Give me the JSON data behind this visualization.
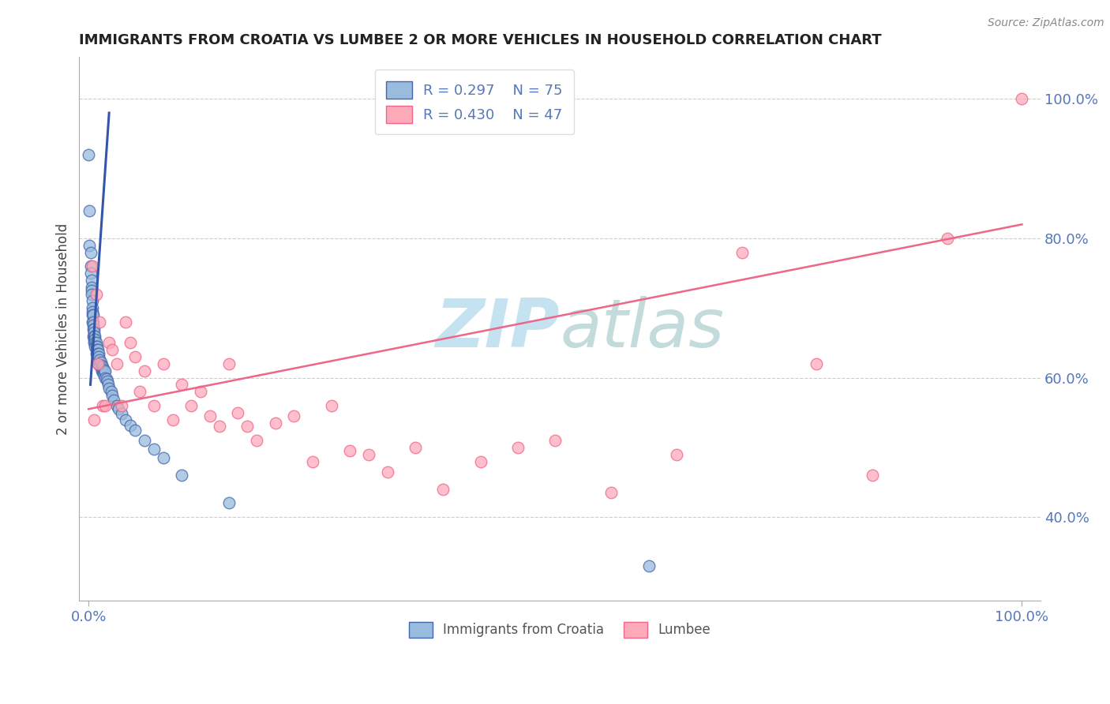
{
  "title": "IMMIGRANTS FROM CROATIA VS LUMBEE 2 OR MORE VEHICLES IN HOUSEHOLD CORRELATION CHART",
  "source_text": "Source: ZipAtlas.com",
  "ylabel": "2 or more Vehicles in Household",
  "legend_labels": [
    "Immigrants from Croatia",
    "Lumbee"
  ],
  "blue_r": "0.297",
  "blue_n": "75",
  "pink_r": "0.430",
  "pink_n": "47",
  "blue_color": "#99BBDD",
  "pink_color": "#FFAABB",
  "blue_edge_color": "#4466AA",
  "pink_edge_color": "#EE6688",
  "blue_line_color": "#3355AA",
  "pink_line_color": "#EE6688",
  "title_color": "#222222",
  "tick_label_color": "#5577BB",
  "watermark_color": "#BBDDEE",
  "background_color": "#FFFFFF",
  "grid_color": "#CCCCCC",
  "blue_scatter_x": [
    0.0,
    0.001,
    0.001,
    0.002,
    0.002,
    0.002,
    0.003,
    0.003,
    0.003,
    0.003,
    0.004,
    0.004,
    0.004,
    0.004,
    0.004,
    0.005,
    0.005,
    0.005,
    0.005,
    0.005,
    0.006,
    0.006,
    0.006,
    0.006,
    0.006,
    0.007,
    0.007,
    0.007,
    0.007,
    0.008,
    0.008,
    0.008,
    0.008,
    0.009,
    0.009,
    0.009,
    0.01,
    0.01,
    0.01,
    0.01,
    0.011,
    0.011,
    0.011,
    0.012,
    0.012,
    0.013,
    0.013,
    0.014,
    0.014,
    0.015,
    0.015,
    0.016,
    0.016,
    0.017,
    0.018,
    0.018,
    0.019,
    0.02,
    0.021,
    0.022,
    0.024,
    0.025,
    0.027,
    0.03,
    0.032,
    0.035,
    0.04,
    0.045,
    0.05,
    0.06,
    0.07,
    0.08,
    0.1,
    0.15,
    0.6
  ],
  "blue_scatter_y": [
    0.92,
    0.84,
    0.79,
    0.78,
    0.76,
    0.75,
    0.74,
    0.73,
    0.725,
    0.72,
    0.71,
    0.7,
    0.695,
    0.69,
    0.68,
    0.69,
    0.68,
    0.675,
    0.67,
    0.66,
    0.67,
    0.665,
    0.66,
    0.655,
    0.65,
    0.66,
    0.655,
    0.65,
    0.645,
    0.65,
    0.645,
    0.64,
    0.635,
    0.645,
    0.64,
    0.635,
    0.64,
    0.635,
    0.63,
    0.625,
    0.635,
    0.63,
    0.62,
    0.625,
    0.618,
    0.622,
    0.615,
    0.618,
    0.61,
    0.615,
    0.608,
    0.612,
    0.605,
    0.608,
    0.61,
    0.6,
    0.598,
    0.595,
    0.59,
    0.585,
    0.58,
    0.575,
    0.568,
    0.56,
    0.555,
    0.548,
    0.54,
    0.532,
    0.525,
    0.51,
    0.498,
    0.485,
    0.46,
    0.42,
    0.33
  ],
  "pink_scatter_x": [
    0.004,
    0.006,
    0.008,
    0.01,
    0.012,
    0.015,
    0.018,
    0.022,
    0.025,
    0.03,
    0.035,
    0.04,
    0.045,
    0.05,
    0.055,
    0.06,
    0.07,
    0.08,
    0.09,
    0.1,
    0.11,
    0.12,
    0.13,
    0.14,
    0.15,
    0.16,
    0.17,
    0.18,
    0.2,
    0.22,
    0.24,
    0.26,
    0.28,
    0.3,
    0.32,
    0.35,
    0.38,
    0.42,
    0.46,
    0.5,
    0.56,
    0.63,
    0.7,
    0.78,
    0.84,
    0.92,
    1.0
  ],
  "pink_scatter_y": [
    0.76,
    0.54,
    0.72,
    0.62,
    0.68,
    0.56,
    0.56,
    0.65,
    0.64,
    0.62,
    0.56,
    0.68,
    0.65,
    0.63,
    0.58,
    0.61,
    0.56,
    0.62,
    0.54,
    0.59,
    0.56,
    0.58,
    0.545,
    0.53,
    0.62,
    0.55,
    0.53,
    0.51,
    0.535,
    0.545,
    0.48,
    0.56,
    0.495,
    0.49,
    0.465,
    0.5,
    0.44,
    0.48,
    0.5,
    0.51,
    0.435,
    0.49,
    0.78,
    0.62,
    0.46,
    0.8,
    1.0
  ],
  "blue_line_x": [
    0.002,
    0.022
  ],
  "blue_line_y": [
    0.59,
    0.98
  ],
  "pink_line_x": [
    0.0,
    1.0
  ],
  "pink_line_y": [
    0.555,
    0.82
  ],
  "yticks": [
    0.4,
    0.6,
    0.8,
    1.0
  ],
  "ytick_labels": [
    "40.0%",
    "60.0%",
    "80.0%",
    "100.0%"
  ],
  "xticks": [
    0.0,
    1.0
  ],
  "xtick_labels": [
    "0.0%",
    "100.0%"
  ],
  "xlim": [
    -0.01,
    1.02
  ],
  "ylim": [
    0.28,
    1.06
  ]
}
